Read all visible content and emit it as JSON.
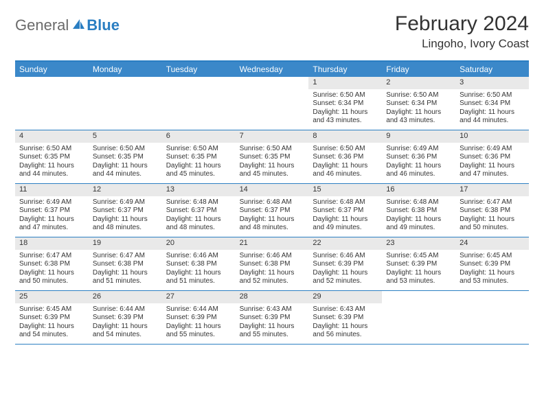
{
  "brand": {
    "text1": "General",
    "text2": "Blue"
  },
  "title": "February 2024",
  "location": "Lingoho, Ivory Coast",
  "colors": {
    "header_bg": "#3b88c9",
    "border": "#2a7ec2",
    "daynum_bg": "#e9e9e9",
    "text": "#333333",
    "logo_gray": "#6a6a6a",
    "logo_blue": "#2a7ec2"
  },
  "day_names": [
    "Sunday",
    "Monday",
    "Tuesday",
    "Wednesday",
    "Thursday",
    "Friday",
    "Saturday"
  ],
  "weeks": [
    [
      {
        "n": "",
        "sr": "",
        "ss": "",
        "dl": ""
      },
      {
        "n": "",
        "sr": "",
        "ss": "",
        "dl": ""
      },
      {
        "n": "",
        "sr": "",
        "ss": "",
        "dl": ""
      },
      {
        "n": "",
        "sr": "",
        "ss": "",
        "dl": ""
      },
      {
        "n": "1",
        "sr": "Sunrise: 6:50 AM",
        "ss": "Sunset: 6:34 PM",
        "dl": "Daylight: 11 hours and 43 minutes."
      },
      {
        "n": "2",
        "sr": "Sunrise: 6:50 AM",
        "ss": "Sunset: 6:34 PM",
        "dl": "Daylight: 11 hours and 43 minutes."
      },
      {
        "n": "3",
        "sr": "Sunrise: 6:50 AM",
        "ss": "Sunset: 6:34 PM",
        "dl": "Daylight: 11 hours and 44 minutes."
      }
    ],
    [
      {
        "n": "4",
        "sr": "Sunrise: 6:50 AM",
        "ss": "Sunset: 6:35 PM",
        "dl": "Daylight: 11 hours and 44 minutes."
      },
      {
        "n": "5",
        "sr": "Sunrise: 6:50 AM",
        "ss": "Sunset: 6:35 PM",
        "dl": "Daylight: 11 hours and 44 minutes."
      },
      {
        "n": "6",
        "sr": "Sunrise: 6:50 AM",
        "ss": "Sunset: 6:35 PM",
        "dl": "Daylight: 11 hours and 45 minutes."
      },
      {
        "n": "7",
        "sr": "Sunrise: 6:50 AM",
        "ss": "Sunset: 6:35 PM",
        "dl": "Daylight: 11 hours and 45 minutes."
      },
      {
        "n": "8",
        "sr": "Sunrise: 6:50 AM",
        "ss": "Sunset: 6:36 PM",
        "dl": "Daylight: 11 hours and 46 minutes."
      },
      {
        "n": "9",
        "sr": "Sunrise: 6:49 AM",
        "ss": "Sunset: 6:36 PM",
        "dl": "Daylight: 11 hours and 46 minutes."
      },
      {
        "n": "10",
        "sr": "Sunrise: 6:49 AM",
        "ss": "Sunset: 6:36 PM",
        "dl": "Daylight: 11 hours and 47 minutes."
      }
    ],
    [
      {
        "n": "11",
        "sr": "Sunrise: 6:49 AM",
        "ss": "Sunset: 6:37 PM",
        "dl": "Daylight: 11 hours and 47 minutes."
      },
      {
        "n": "12",
        "sr": "Sunrise: 6:49 AM",
        "ss": "Sunset: 6:37 PM",
        "dl": "Daylight: 11 hours and 48 minutes."
      },
      {
        "n": "13",
        "sr": "Sunrise: 6:48 AM",
        "ss": "Sunset: 6:37 PM",
        "dl": "Daylight: 11 hours and 48 minutes."
      },
      {
        "n": "14",
        "sr": "Sunrise: 6:48 AM",
        "ss": "Sunset: 6:37 PM",
        "dl": "Daylight: 11 hours and 48 minutes."
      },
      {
        "n": "15",
        "sr": "Sunrise: 6:48 AM",
        "ss": "Sunset: 6:37 PM",
        "dl": "Daylight: 11 hours and 49 minutes."
      },
      {
        "n": "16",
        "sr": "Sunrise: 6:48 AM",
        "ss": "Sunset: 6:38 PM",
        "dl": "Daylight: 11 hours and 49 minutes."
      },
      {
        "n": "17",
        "sr": "Sunrise: 6:47 AM",
        "ss": "Sunset: 6:38 PM",
        "dl": "Daylight: 11 hours and 50 minutes."
      }
    ],
    [
      {
        "n": "18",
        "sr": "Sunrise: 6:47 AM",
        "ss": "Sunset: 6:38 PM",
        "dl": "Daylight: 11 hours and 50 minutes."
      },
      {
        "n": "19",
        "sr": "Sunrise: 6:47 AM",
        "ss": "Sunset: 6:38 PM",
        "dl": "Daylight: 11 hours and 51 minutes."
      },
      {
        "n": "20",
        "sr": "Sunrise: 6:46 AM",
        "ss": "Sunset: 6:38 PM",
        "dl": "Daylight: 11 hours and 51 minutes."
      },
      {
        "n": "21",
        "sr": "Sunrise: 6:46 AM",
        "ss": "Sunset: 6:38 PM",
        "dl": "Daylight: 11 hours and 52 minutes."
      },
      {
        "n": "22",
        "sr": "Sunrise: 6:46 AM",
        "ss": "Sunset: 6:39 PM",
        "dl": "Daylight: 11 hours and 52 minutes."
      },
      {
        "n": "23",
        "sr": "Sunrise: 6:45 AM",
        "ss": "Sunset: 6:39 PM",
        "dl": "Daylight: 11 hours and 53 minutes."
      },
      {
        "n": "24",
        "sr": "Sunrise: 6:45 AM",
        "ss": "Sunset: 6:39 PM",
        "dl": "Daylight: 11 hours and 53 minutes."
      }
    ],
    [
      {
        "n": "25",
        "sr": "Sunrise: 6:45 AM",
        "ss": "Sunset: 6:39 PM",
        "dl": "Daylight: 11 hours and 54 minutes."
      },
      {
        "n": "26",
        "sr": "Sunrise: 6:44 AM",
        "ss": "Sunset: 6:39 PM",
        "dl": "Daylight: 11 hours and 54 minutes."
      },
      {
        "n": "27",
        "sr": "Sunrise: 6:44 AM",
        "ss": "Sunset: 6:39 PM",
        "dl": "Daylight: 11 hours and 55 minutes."
      },
      {
        "n": "28",
        "sr": "Sunrise: 6:43 AM",
        "ss": "Sunset: 6:39 PM",
        "dl": "Daylight: 11 hours and 55 minutes."
      },
      {
        "n": "29",
        "sr": "Sunrise: 6:43 AM",
        "ss": "Sunset: 6:39 PM",
        "dl": "Daylight: 11 hours and 56 minutes."
      },
      {
        "n": "",
        "sr": "",
        "ss": "",
        "dl": ""
      },
      {
        "n": "",
        "sr": "",
        "ss": "",
        "dl": ""
      }
    ]
  ]
}
